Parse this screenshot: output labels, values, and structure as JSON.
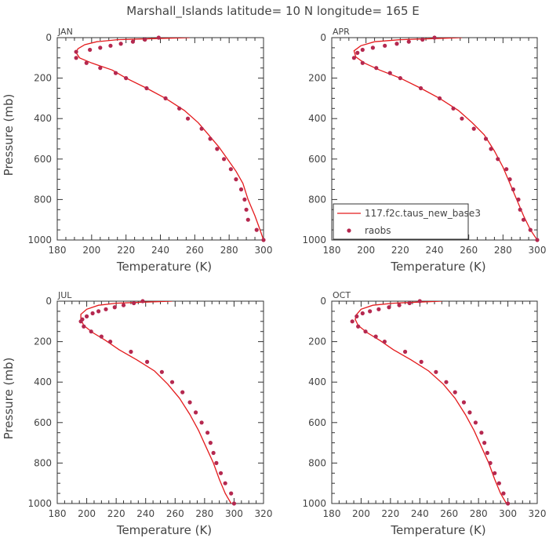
{
  "figure": {
    "title": "Marshall_Islands  latitude= 10 N longitude= 165 E"
  },
  "colors": {
    "model_line": "#e41a1c",
    "raobs_point": "#b5284f",
    "axis": "#333333",
    "text": "#444444"
  },
  "legend": {
    "model_label": "117.f2c.taus_new_base3",
    "obs_label": "raobs"
  },
  "chart_data": [
    {
      "type": "line",
      "panel": "JAN",
      "xlabel": "Temperature (K)",
      "ylabel": "Pressure (mb)",
      "xlim": [
        180,
        300
      ],
      "ylim": [
        1000,
        0
      ],
      "xticks": [
        180,
        200,
        220,
        240,
        260,
        280,
        300
      ],
      "yticks": [
        0,
        200,
        400,
        600,
        800,
        1000
      ],
      "series": [
        {
          "name": "117.f2c.taus_new_base3",
          "kind": "line",
          "x": [
            257,
            235,
            215,
            203,
            196,
            192,
            191,
            193,
            200,
            212,
            220,
            232,
            243,
            254,
            262,
            268,
            274,
            279,
            284,
            288,
            291,
            295,
            298,
            300
          ],
          "y": [
            0,
            5,
            10,
            20,
            35,
            55,
            75,
            100,
            125,
            160,
            200,
            250,
            300,
            360,
            420,
            480,
            540,
            600,
            660,
            720,
            800,
            880,
            950,
            1000
          ]
        },
        {
          "name": "raobs",
          "kind": "scatter",
          "x": [
            239,
            231,
            224,
            217,
            211,
            205,
            199,
            191,
            191,
            197,
            205,
            214,
            220,
            232,
            243,
            251,
            256,
            264,
            269,
            273,
            277,
            281,
            284,
            287,
            289,
            290,
            291,
            296,
            300
          ],
          "y": [
            0,
            10,
            20,
            30,
            40,
            50,
            60,
            70,
            100,
            125,
            150,
            175,
            200,
            250,
            300,
            350,
            400,
            450,
            500,
            550,
            600,
            650,
            700,
            750,
            800,
            850,
            900,
            950,
            1000
          ]
        }
      ]
    },
    {
      "type": "line",
      "panel": "APR",
      "xlabel": "Temperature (K)",
      "ylabel": "",
      "xlim": [
        180,
        300
      ],
      "ylim": [
        1000,
        0
      ],
      "xticks": [
        180,
        200,
        220,
        240,
        260,
        280,
        300
      ],
      "yticks": [
        0,
        200,
        400,
        600,
        800,
        1000
      ],
      "series": [
        {
          "name": "117.f2c.taus_new_base3",
          "kind": "line",
          "x": [
            256,
            238,
            220,
            205,
            197,
            193,
            194,
            199,
            208,
            220,
            232,
            243,
            254,
            262,
            269,
            275,
            280,
            284,
            288,
            292,
            296,
            300
          ],
          "y": [
            0,
            5,
            10,
            20,
            40,
            65,
            95,
            125,
            160,
            200,
            250,
            300,
            360,
            420,
            480,
            560,
            640,
            720,
            800,
            880,
            950,
            1000
          ]
        },
        {
          "name": "raobs",
          "kind": "scatter",
          "x": [
            240,
            233,
            225,
            218,
            211,
            204,
            198,
            195,
            193,
            198,
            206,
            214,
            220,
            232,
            243,
            251,
            256,
            263,
            270,
            273,
            277,
            282,
            284,
            286,
            289,
            290,
            292,
            296,
            300
          ],
          "y": [
            0,
            10,
            20,
            30,
            40,
            50,
            60,
            75,
            100,
            125,
            150,
            175,
            200,
            250,
            300,
            350,
            400,
            450,
            500,
            550,
            600,
            650,
            700,
            750,
            800,
            850,
            900,
            950,
            1000
          ]
        }
      ]
    },
    {
      "type": "line",
      "panel": "JUL",
      "xlabel": "Temperature (K)",
      "ylabel": "Pressure (mb)",
      "xlim": [
        180,
        320
      ],
      "ylim": [
        1000,
        0
      ],
      "xticks": [
        180,
        200,
        220,
        240,
        260,
        280,
        300,
        320
      ],
      "yticks": [
        0,
        200,
        400,
        600,
        800,
        1000
      ],
      "series": [
        {
          "name": "117.f2c.taus_new_base3",
          "kind": "line",
          "x": [
            258,
            238,
            220,
            208,
            200,
            196,
            196,
            198,
            204,
            213,
            222,
            234,
            246,
            255,
            263,
            270,
            276,
            281,
            286,
            290,
            294,
            298
          ],
          "y": [
            0,
            5,
            10,
            20,
            40,
            65,
            90,
            120,
            155,
            195,
            240,
            290,
            345,
            410,
            480,
            560,
            640,
            720,
            800,
            880,
            950,
            1000
          ]
        },
        {
          "name": "raobs",
          "kind": "scatter",
          "x": [
            238,
            232,
            225,
            219,
            213,
            208,
            204,
            200,
            197,
            196,
            198,
            203,
            210,
            216,
            230,
            241,
            251,
            258,
            265,
            270,
            274,
            278,
            282,
            284,
            286,
            288,
            291,
            294,
            298,
            300
          ],
          "y": [
            0,
            10,
            20,
            30,
            40,
            50,
            60,
            75,
            90,
            100,
            125,
            150,
            175,
            200,
            250,
            300,
            350,
            400,
            450,
            500,
            550,
            600,
            650,
            700,
            750,
            800,
            850,
            900,
            950,
            1000
          ]
        }
      ]
    },
    {
      "type": "line",
      "panel": "OCT",
      "xlabel": "Temperature (K)",
      "ylabel": "",
      "xlim": [
        180,
        320
      ],
      "ylim": [
        1000,
        0
      ],
      "xticks": [
        180,
        200,
        220,
        240,
        260,
        280,
        300,
        320
      ],
      "yticks": [
        0,
        200,
        400,
        600,
        800,
        1000
      ],
      "series": [
        {
          "name": "117.f2c.taus_new_base3",
          "kind": "line",
          "x": [
            255,
            238,
            222,
            208,
            200,
            197,
            196,
            198,
            204,
            213,
            222,
            234,
            246,
            256,
            264,
            271,
            277,
            282,
            287,
            291,
            295,
            299
          ],
          "y": [
            0,
            5,
            10,
            20,
            40,
            65,
            90,
            120,
            155,
            195,
            240,
            290,
            345,
            410,
            480,
            560,
            640,
            720,
            800,
            880,
            950,
            1000
          ]
        },
        {
          "name": "raobs",
          "kind": "scatter",
          "x": [
            240,
            233,
            226,
            219,
            212,
            206,
            201,
            197,
            194,
            198,
            203,
            210,
            216,
            230,
            241,
            251,
            258,
            264,
            270,
            274,
            278,
            282,
            284,
            286,
            288,
            291,
            294,
            297,
            300
          ],
          "y": [
            0,
            10,
            20,
            30,
            40,
            50,
            60,
            75,
            100,
            125,
            150,
            175,
            200,
            250,
            300,
            350,
            400,
            450,
            500,
            550,
            600,
            650,
            700,
            750,
            800,
            850,
            900,
            950,
            1000
          ]
        }
      ]
    }
  ]
}
